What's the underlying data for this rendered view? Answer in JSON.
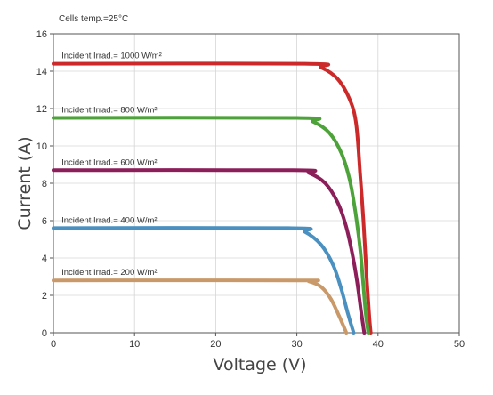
{
  "chart_data": {
    "type": "line",
    "annotation": "Cells temp.=25°C",
    "xlabel": "Voltage (V)",
    "ylabel": "Current (A)",
    "xlim": [
      0,
      50
    ],
    "ylim": [
      0,
      16
    ],
    "xticks": [
      0,
      10,
      20,
      30,
      40,
      50
    ],
    "yticks": [
      0,
      2,
      4,
      6,
      8,
      10,
      12,
      14,
      16
    ],
    "grid": true,
    "series": [
      {
        "name": "Incident Irrad.= 1000 W/m²",
        "color": "#cc2a2a",
        "x": [
          0,
          31,
          33,
          35,
          36.5,
          37.3,
          37.8,
          38.2,
          38.6,
          38.9,
          39.1
        ],
        "y": [
          14.4,
          14.4,
          14.2,
          13.6,
          12.5,
          11.2,
          8.5,
          6.0,
          3.0,
          1.0,
          0
        ]
      },
      {
        "name": "Incident Irrad.= 800 W/m²",
        "color": "#4da33a",
        "x": [
          0,
          30,
          32,
          34,
          35.5,
          36.5,
          37.2,
          37.8,
          38.2,
          38.5,
          38.8
        ],
        "y": [
          11.5,
          11.5,
          11.3,
          10.7,
          9.6,
          8.2,
          6.5,
          4.5,
          2.5,
          1.0,
          0
        ]
      },
      {
        "name": "Incident Irrad.= 600 W/m²",
        "color": "#8c1e5a",
        "x": [
          0,
          29.5,
          31.5,
          33.5,
          35,
          36,
          36.8,
          37.4,
          37.9,
          38.3
        ],
        "y": [
          8.7,
          8.7,
          8.55,
          8.0,
          7.0,
          5.8,
          4.3,
          2.8,
          1.2,
          0
        ]
      },
      {
        "name": "Incident Irrad.= 400 W/m²",
        "color": "#4a90c0",
        "x": [
          0,
          29,
          31,
          33,
          34.5,
          35.5,
          36.3,
          37.0
        ],
        "y": [
          5.6,
          5.6,
          5.4,
          4.7,
          3.6,
          2.3,
          1.0,
          0
        ]
      },
      {
        "name": "Incident Irrad.= 200 W/m²",
        "color": "#c9996a",
        "x": [
          0,
          30,
          31.5,
          33,
          34.2,
          35.2,
          36.1
        ],
        "y": [
          2.8,
          2.8,
          2.75,
          2.45,
          1.8,
          0.9,
          0
        ]
      }
    ]
  }
}
